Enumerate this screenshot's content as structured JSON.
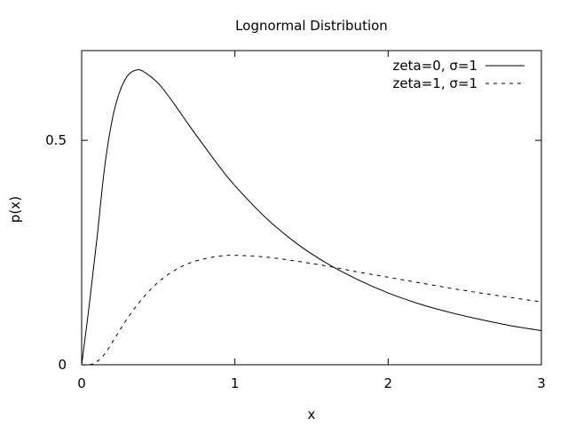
{
  "chart_data": {
    "type": "line",
    "title": "Lognormal Distribution",
    "xlabel": "x",
    "ylabel": "p(x)",
    "xlim": [
      0,
      3
    ],
    "ylim": [
      0,
      0.7
    ],
    "x_ticks": [
      0,
      1,
      2,
      3
    ],
    "x_tick_labels": [
      "0",
      "1",
      "2",
      "3"
    ],
    "y_ticks": [
      0,
      0.5
    ],
    "y_tick_labels": [
      "0",
      "0.5"
    ],
    "grid": false,
    "legend_position": "top-right",
    "series": [
      {
        "name": "zeta=0, σ=1",
        "style": "solid",
        "x": [
          0.0,
          0.05,
          0.1,
          0.15,
          0.2,
          0.25,
          0.3,
          0.35,
          0.4,
          0.5,
          0.6,
          0.7,
          0.8,
          0.9,
          1.0,
          1.2,
          1.4,
          1.6,
          1.8,
          2.0,
          2.2,
          2.4,
          2.6,
          2.8,
          3.0
        ],
        "values": [
          0.0,
          0.134,
          0.282,
          0.44,
          0.547,
          0.61,
          0.644,
          0.656,
          0.654,
          0.627,
          0.583,
          0.534,
          0.487,
          0.441,
          0.399,
          0.328,
          0.271,
          0.226,
          0.19,
          0.16,
          0.136,
          0.117,
          0.101,
          0.087,
          0.076
        ]
      },
      {
        "name": "zeta=1, σ=1",
        "style": "dashed",
        "x": [
          0.0,
          0.05,
          0.1,
          0.15,
          0.2,
          0.3,
          0.4,
          0.5,
          0.6,
          0.7,
          0.8,
          0.9,
          1.0,
          1.2,
          1.4,
          1.6,
          1.8,
          2.0,
          2.2,
          2.4,
          2.6,
          2.8,
          3.0
        ],
        "values": [
          0.0,
          0.0,
          0.007,
          0.024,
          0.05,
          0.104,
          0.149,
          0.184,
          0.209,
          0.226,
          0.236,
          0.242,
          0.244,
          0.24,
          0.231,
          0.22,
          0.207,
          0.195,
          0.183,
          0.171,
          0.16,
          0.15,
          0.14
        ]
      }
    ],
    "colors": {
      "line": "#000000",
      "frame": "#000000",
      "background": "#ffffff"
    }
  }
}
